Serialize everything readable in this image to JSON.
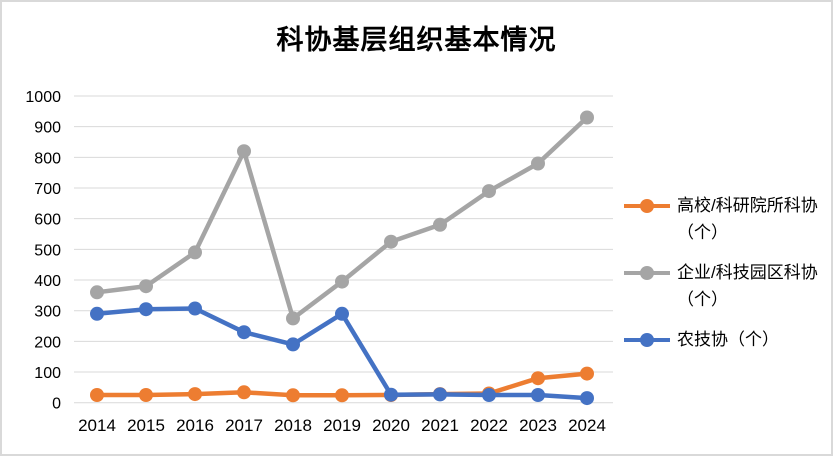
{
  "chart_data": {
    "type": "line",
    "title": "科协基层组织基本情况",
    "categories": [
      "2014",
      "2015",
      "2016",
      "2017",
      "2018",
      "2019",
      "2020",
      "2021",
      "2022",
      "2023",
      "2024"
    ],
    "series": [
      {
        "name": "高校/科研院所科协（个）",
        "color": "#ED7D31",
        "values": [
          25,
          25,
          28,
          34,
          24,
          24,
          25,
          28,
          30,
          80,
          95
        ]
      },
      {
        "name": "企业/科技园区科协（个）",
        "color": "#A5A5A5",
        "values": [
          360,
          380,
          490,
          820,
          275,
          395,
          525,
          580,
          690,
          780,
          930
        ]
      },
      {
        "name": "农技协（个）",
        "color": "#4472C4",
        "values": [
          290,
          305,
          307,
          230,
          190,
          290,
          26,
          27,
          25,
          25,
          15
        ]
      }
    ],
    "xlabel": "",
    "ylabel": "",
    "ylim": [
      0,
      1000
    ],
    "ytick_step": 100,
    "grid": true,
    "legend_position": "right",
    "gridline_color": "#D9D9D9",
    "axis_text_color": "#000000",
    "frame_border_color": "#D9D9D9"
  }
}
